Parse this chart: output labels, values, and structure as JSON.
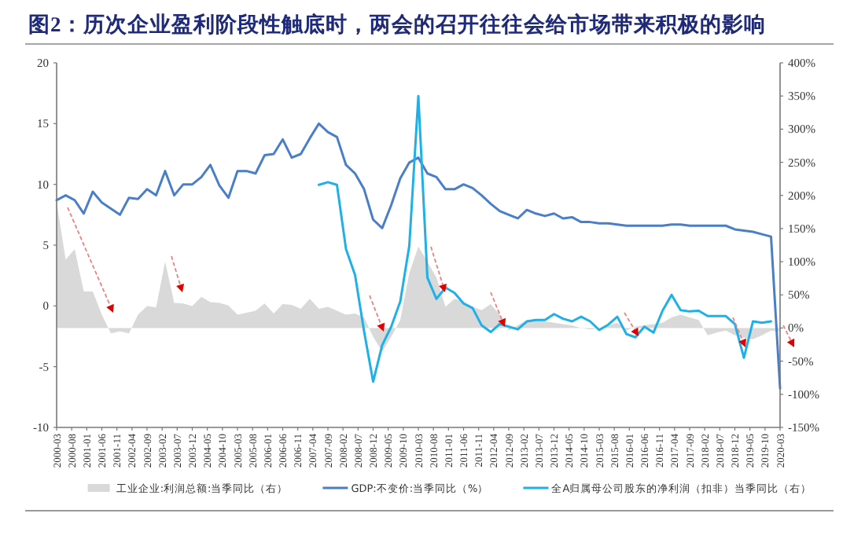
{
  "chart_data": {
    "type": "line",
    "title": "图2：历次企业盈利阶段性触底时，两会的召开往往会给市场带来积极的影响",
    "x": [
      "2000-03",
      "2000-06",
      "2000-09",
      "2000-12",
      "2001-03",
      "2001-06",
      "2001-09",
      "2001-12",
      "2002-03",
      "2002-06",
      "2002-09",
      "2002-12",
      "2003-03",
      "2003-06",
      "2003-09",
      "2003-12",
      "2004-03",
      "2004-06",
      "2004-09",
      "2004-12",
      "2005-03",
      "2005-06",
      "2005-09",
      "2005-12",
      "2006-03",
      "2006-06",
      "2006-09",
      "2006-12",
      "2007-03",
      "2007-06",
      "2007-09",
      "2007-12",
      "2008-03",
      "2008-06",
      "2008-09",
      "2008-12",
      "2009-03",
      "2009-06",
      "2009-09",
      "2009-12",
      "2010-03",
      "2010-06",
      "2010-09",
      "2010-12",
      "2011-03",
      "2011-06",
      "2011-09",
      "2011-12",
      "2012-03",
      "2012-06",
      "2012-09",
      "2012-12",
      "2013-03",
      "2013-06",
      "2013-09",
      "2013-12",
      "2014-03",
      "2014-06",
      "2014-09",
      "2014-12",
      "2015-03",
      "2015-06",
      "2015-09",
      "2015-12",
      "2016-03",
      "2016-06",
      "2016-09",
      "2016-12",
      "2017-03",
      "2017-06",
      "2017-09",
      "2017-12",
      "2018-03",
      "2018-06",
      "2018-09",
      "2018-12",
      "2019-03",
      "2019-06",
      "2019-09",
      "2019-12",
      "2020-03"
    ],
    "series": [
      {
        "name": "工业企业:利润总额:当季同比（右）",
        "type": "area",
        "axis": "y2",
        "color": "#d9d9d9",
        "values": [
          190,
          103,
          119,
          55,
          55,
          20,
          -8,
          -5,
          -8,
          20,
          33,
          31,
          100,
          38,
          37,
          33,
          47,
          39,
          38,
          34,
          20,
          23,
          26,
          37,
          22,
          36,
          35,
          29,
          44,
          29,
          32,
          26,
          20,
          22,
          16,
          -13,
          -36,
          -13,
          12,
          83,
          123,
          100,
          76,
          32,
          44,
          40,
          32,
          27,
          36,
          20,
          -4,
          4,
          12,
          12,
          10,
          8,
          6,
          4,
          0,
          -2,
          0,
          4,
          8,
          -4,
          2,
          4,
          6,
          8,
          16,
          20,
          16,
          12,
          -11,
          -7,
          -4,
          -11,
          -15,
          -17,
          -11,
          -4,
          -5
        ]
      },
      {
        "name": "GDP:不变价:当季同比（%）",
        "axis": "y",
        "color": "#4a7fc8",
        "values": [
          8.7,
          9.1,
          8.7,
          7.6,
          9.4,
          8.5,
          8.0,
          7.5,
          8.9,
          8.8,
          9.6,
          9.1,
          11.1,
          9.1,
          10.0,
          10.0,
          10.6,
          11.6,
          9.9,
          8.9,
          11.1,
          11.1,
          10.9,
          12.4,
          12.5,
          13.7,
          12.2,
          12.5,
          13.8,
          15.0,
          14.3,
          13.9,
          11.6,
          10.9,
          9.6,
          7.1,
          6.4,
          8.3,
          10.5,
          11.8,
          12.2,
          10.9,
          10.6,
          9.6,
          9.6,
          10.0,
          9.7,
          9.1,
          8.4,
          7.8,
          7.5,
          7.2,
          7.9,
          7.6,
          7.4,
          7.6,
          7.2,
          7.3,
          6.9,
          6.9,
          6.8,
          6.8,
          6.7,
          6.6,
          6.6,
          6.6,
          6.6,
          6.6,
          6.7,
          6.7,
          6.6,
          6.6,
          6.6,
          6.6,
          6.6,
          6.3,
          6.2,
          6.1,
          5.9,
          5.7,
          -6.8
        ]
      },
      {
        "name": "全A归属母公司股东的净利润（扣非）当季同比（右）",
        "axis": "y2",
        "color": "#1fb0e8",
        "values": [
          null,
          null,
          null,
          null,
          null,
          null,
          null,
          null,
          null,
          null,
          null,
          null,
          null,
          null,
          null,
          null,
          null,
          null,
          null,
          null,
          null,
          null,
          null,
          null,
          null,
          null,
          null,
          null,
          null,
          216,
          220,
          216,
          119,
          80,
          -5,
          -81,
          -26,
          2,
          40,
          124,
          350,
          76,
          44,
          61,
          53,
          37,
          30,
          4,
          -6,
          6,
          2,
          -2,
          10,
          12,
          12,
          21,
          14,
          10,
          17,
          10,
          -3,
          5,
          17,
          -9,
          -14,
          2,
          -7,
          26,
          50,
          27,
          25,
          26,
          18,
          18,
          18,
          6,
          -45,
          10,
          8,
          10,
          null
        ]
      }
    ],
    "xlim": [
      "2000-03",
      "2020-03"
    ],
    "xticks": [
      "2000-03",
      "2000-08",
      "2001-01",
      "2001-06",
      "2001-11",
      "2002-04",
      "2002-09",
      "2003-02",
      "2003-07",
      "2003-12",
      "2004-05",
      "2004-10",
      "2005-03",
      "2005-08",
      "2006-01",
      "2006-06",
      "2006-11",
      "2007-04",
      "2007-09",
      "2008-02",
      "2008-07",
      "2008-12",
      "2009-05",
      "2009-10",
      "2010-03",
      "2010-08",
      "2011-01",
      "2011-06",
      "2011-11",
      "2012-04",
      "2012-09",
      "2013-02",
      "2013-07",
      "2013-12",
      "2014-05",
      "2014-10",
      "2015-03",
      "2015-08",
      "2016-01",
      "2016-06",
      "2016-11",
      "2017-04",
      "2017-09",
      "2018-02",
      "2018-07",
      "2018-12",
      "2019-05",
      "2019-10",
      "2020-03"
    ],
    "ylim": [
      -10,
      20
    ],
    "yticks": [
      -10,
      -5,
      0,
      5,
      10,
      15,
      20
    ],
    "y2lim": [
      -150,
      400
    ],
    "y2ticks": [
      {
        "value": -150,
        "label": "-150%"
      },
      {
        "value": -100,
        "label": "-100%"
      },
      {
        "value": -50,
        "label": "-50%"
      },
      {
        "value": 0,
        "label": "0%"
      },
      {
        "value": 50,
        "label": "50%"
      },
      {
        "value": 100,
        "label": "100%"
      },
      {
        "value": 150,
        "label": "150%"
      },
      {
        "value": 200,
        "label": "200%"
      },
      {
        "value": 250,
        "label": "250%"
      },
      {
        "value": 300,
        "label": "300%"
      },
      {
        "value": 350,
        "label": "350%"
      },
      {
        "value": 400,
        "label": "400%"
      }
    ],
    "grid": false,
    "legend": "bottom",
    "marker": "none",
    "line_style": "solid"
  }
}
